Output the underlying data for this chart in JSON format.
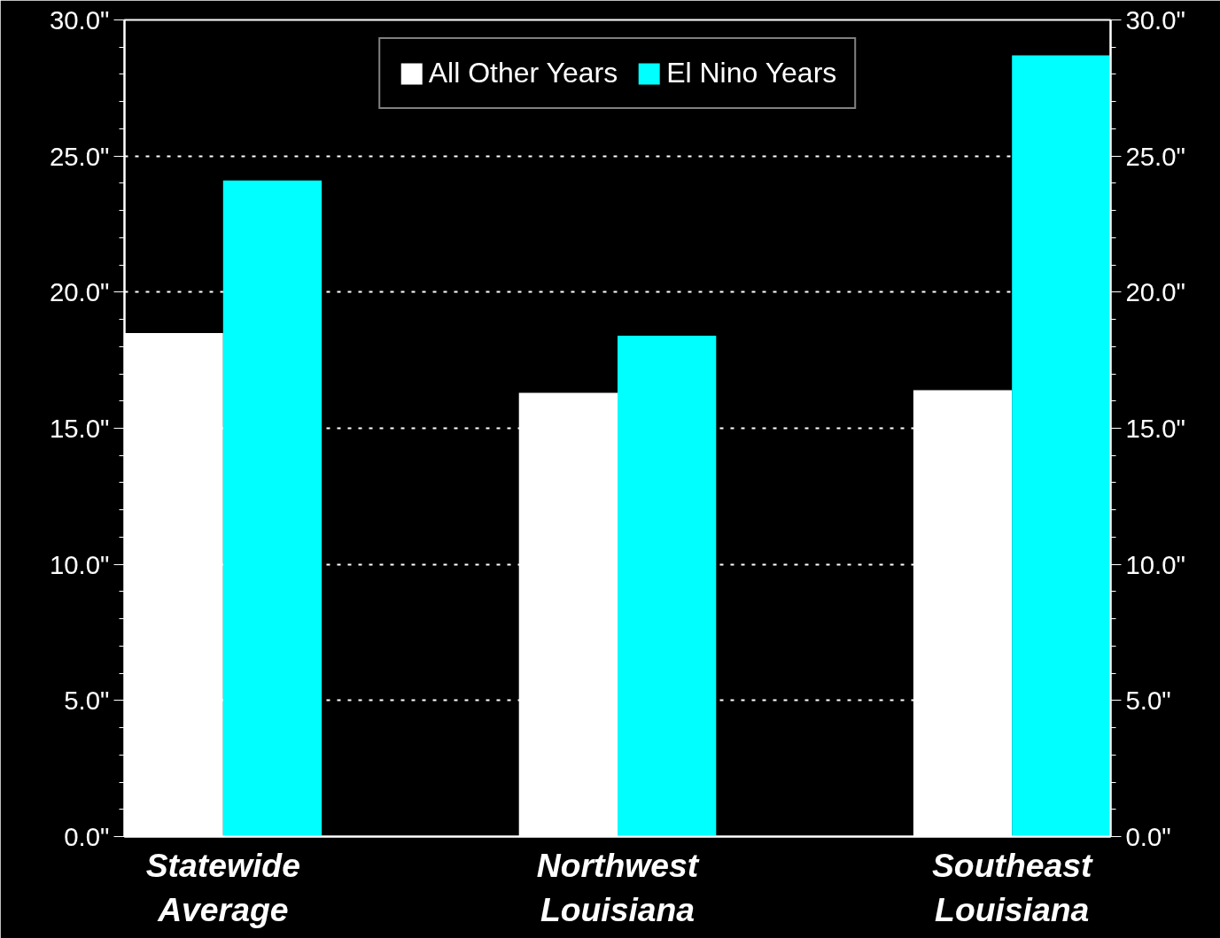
{
  "chart_data": {
    "type": "bar",
    "categories": [
      "Statewide Average",
      "Northwest Louisiana",
      "Southeast Louisiana"
    ],
    "series": [
      {
        "name": "All Other Years",
        "color": "#ffffff",
        "values": [
          18.5,
          16.3,
          16.4
        ]
      },
      {
        "name": "El Nino Years",
        "color": "#00ffff",
        "values": [
          24.1,
          18.4,
          28.7
        ]
      }
    ],
    "ylim": [
      0,
      30
    ],
    "yticks": [
      {
        "value": 0,
        "label": "0.0\""
      },
      {
        "value": 5,
        "label": "5.0\""
      },
      {
        "value": 10,
        "label": "10.0\""
      },
      {
        "value": 15,
        "label": "15.0\""
      },
      {
        "value": 20,
        "label": "20.0\""
      },
      {
        "value": 25,
        "label": "25.0\""
      },
      {
        "value": 30,
        "label": "30.0\""
      }
    ],
    "y2lim": [
      0,
      30
    ],
    "y2ticks": [
      {
        "value": 0,
        "label": "0.0\""
      },
      {
        "value": 5,
        "label": "5.0\""
      },
      {
        "value": 10,
        "label": "10.0\""
      },
      {
        "value": 15,
        "label": "15.0\""
      },
      {
        "value": 20,
        "label": "20.0\""
      },
      {
        "value": 25,
        "label": "25.0\""
      },
      {
        "value": 30,
        "label": "30.0\""
      }
    ],
    "grid": "y",
    "legend": "top"
  }
}
